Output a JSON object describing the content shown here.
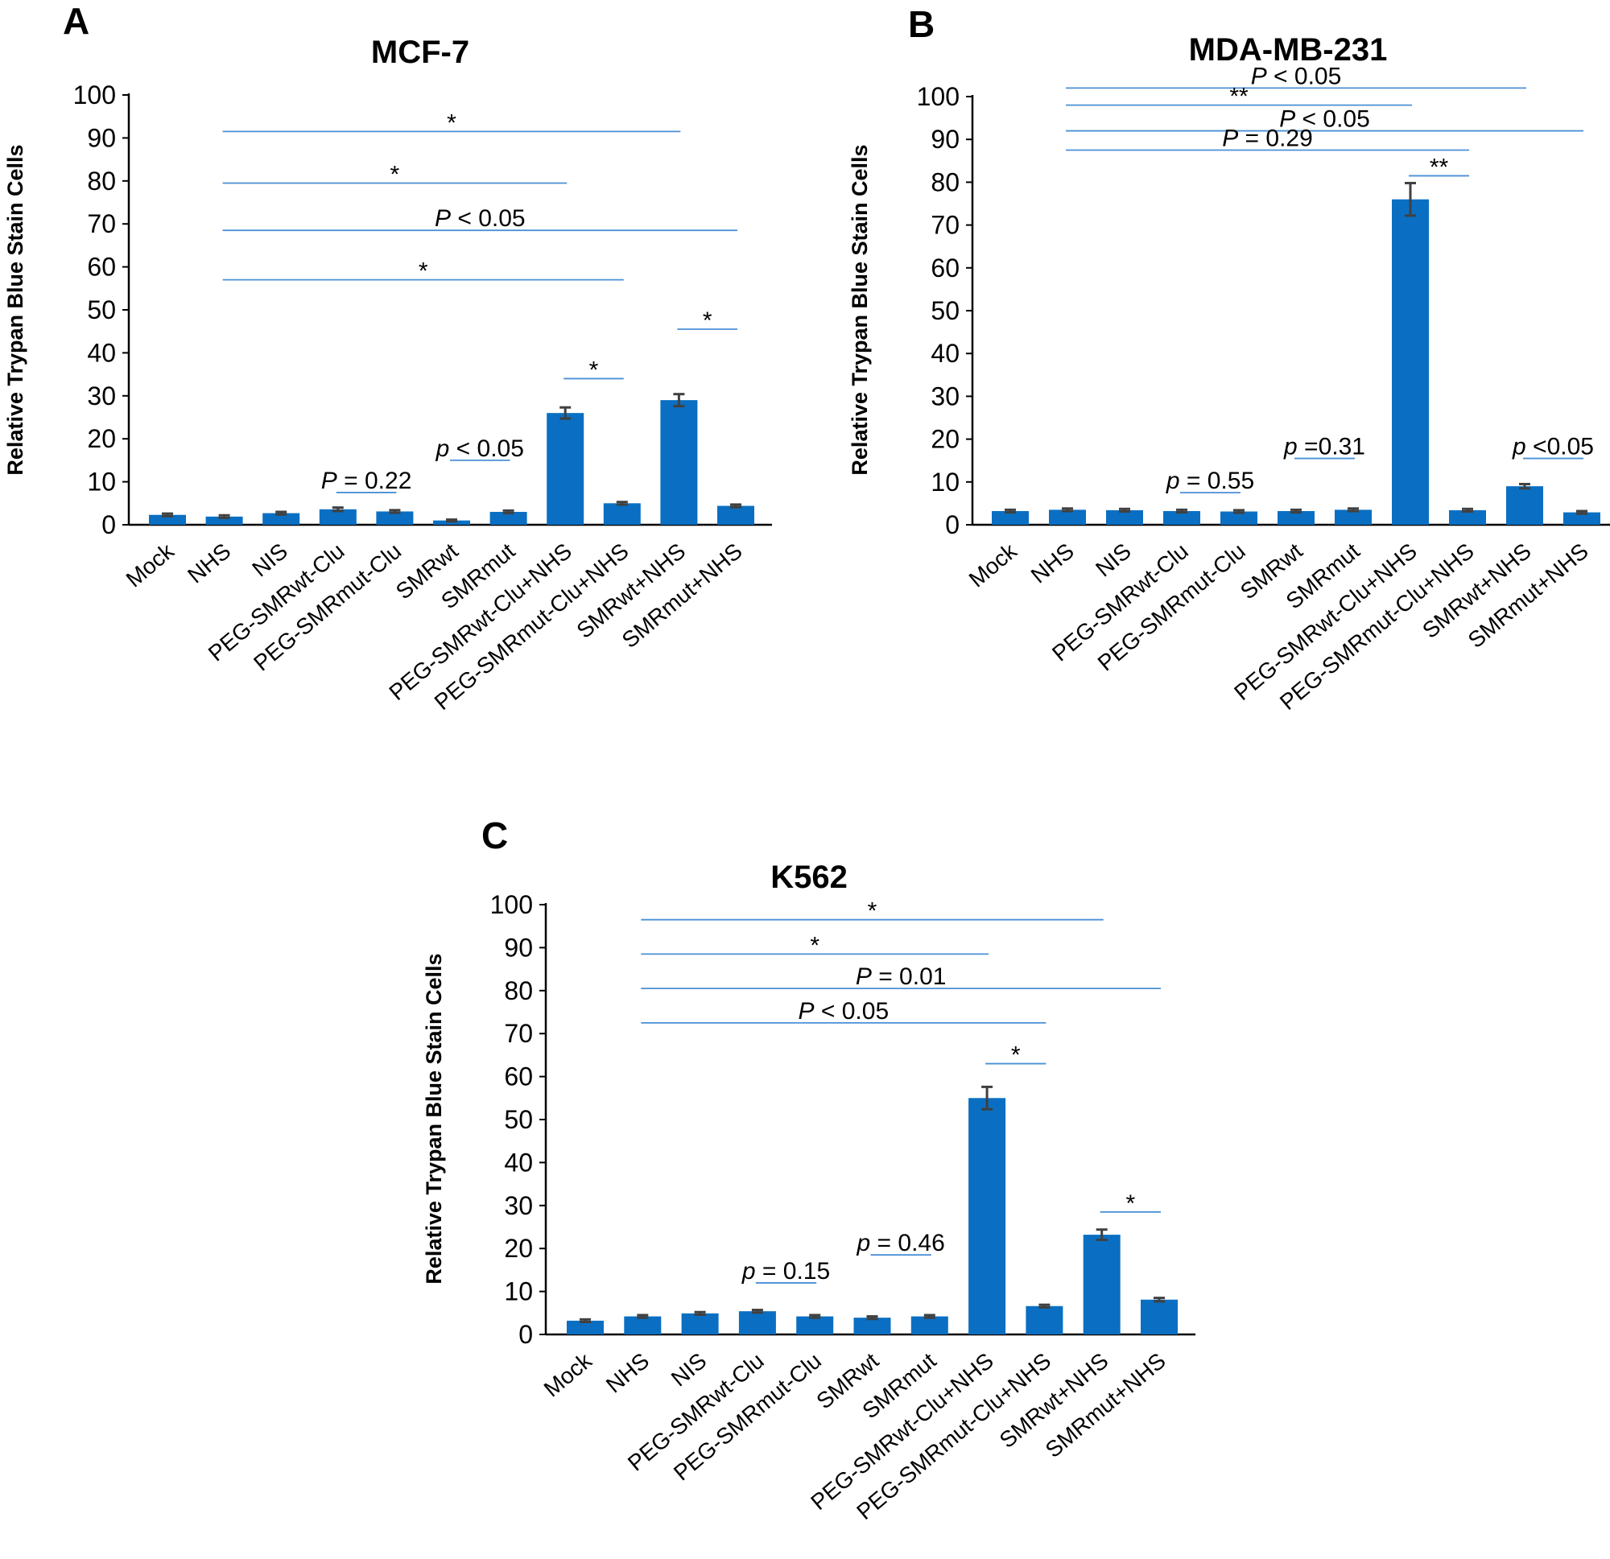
{
  "figure": {
    "bar_color": "#0a6fc2",
    "bracket_color": "#4a8fd6",
    "error_bar_color": "#404040"
  },
  "chart_data": [
    {
      "type": "bar",
      "panel_label": "A",
      "title": "MCF-7",
      "ylabel": "Relative Trypan Blue Stain Cells",
      "xlabel": "",
      "ylim": [
        0,
        100
      ],
      "yticks": [
        0,
        10,
        20,
        30,
        40,
        50,
        60,
        70,
        80,
        90,
        100
      ],
      "grid": false,
      "categories": [
        "Mock",
        "NHS",
        "NIS",
        "PEG-SMRwt-Clu",
        "PEG-SMRmut-Clu",
        "SMRwt",
        "SMRmut",
        "PEG-SMRwt-Clu+NHS",
        "PEG-SMRmut-Clu+NHS",
        "SMRwt+NHS",
        "SMRmut+NHS"
      ],
      "values": [
        2.3,
        1.9,
        2.7,
        3.6,
        3.1,
        1.0,
        3.0,
        26.0,
        5.0,
        29.0,
        4.4
      ],
      "errors": [
        0.3,
        0.3,
        0.3,
        0.4,
        0.3,
        0.2,
        0.3,
        1.3,
        0.3,
        1.4,
        0.3
      ],
      "annotations": [
        {
          "from": 1,
          "to": 9,
          "y": 91.5,
          "label": "*"
        },
        {
          "from": 1,
          "to": 7,
          "y": 79.5,
          "label": "*"
        },
        {
          "from": 1,
          "to": 10,
          "y": 68.5,
          "label": "P < 0.05"
        },
        {
          "from": 1,
          "to": 8,
          "y": 57,
          "label": "*"
        },
        {
          "from": 9,
          "to": 10,
          "y": 45.5,
          "label": "*"
        },
        {
          "from": 7,
          "to": 8,
          "y": 34,
          "label": "*"
        },
        {
          "from": 5,
          "to": 6,
          "y": 15,
          "label": "p < 0.05"
        },
        {
          "from": 3,
          "to": 4,
          "y": 7.5,
          "label": "P = 0.22"
        }
      ]
    },
    {
      "type": "bar",
      "panel_label": "B",
      "title": "MDA-MB-231",
      "ylabel": "Relative Trypan Blue Stain Cells",
      "xlabel": "",
      "ylim": [
        0,
        100
      ],
      "yticks": [
        0,
        10,
        20,
        30,
        40,
        50,
        60,
        70,
        80,
        90,
        100
      ],
      "grid": false,
      "categories": [
        "Mock",
        "NHS",
        "NIS",
        "PEG-SMRwt-Clu",
        "PEG-SMRmut-Clu",
        "SMRwt",
        "SMRmut",
        "PEG-SMRwt-Clu+NHS",
        "PEG-SMRmut-Clu+NHS",
        "SMRwt+NHS",
        "SMRmut+NHS"
      ],
      "values": [
        3.2,
        3.5,
        3.4,
        3.2,
        3.1,
        3.2,
        3.5,
        76.0,
        3.4,
        9.0,
        2.9
      ],
      "errors": [
        0.3,
        0.3,
        0.3,
        0.3,
        0.3,
        0.3,
        0.3,
        3.8,
        0.3,
        0.5,
        0.3
      ],
      "annotations": [
        {
          "from": 1,
          "to": 9,
          "y": 102,
          "label": "P < 0.05"
        },
        {
          "from": 1,
          "to": 7,
          "y": 98,
          "label": "**"
        },
        {
          "from": 1,
          "to": 10,
          "y": 92,
          "label": "P < 0.05"
        },
        {
          "from": 1,
          "to": 8,
          "y": 87.5,
          "label": "P = 0.29"
        },
        {
          "from": 7,
          "to": 8,
          "y": 81.5,
          "label": "**"
        },
        {
          "from": 5,
          "to": 6,
          "y": 15.5,
          "label": "p =0.31"
        },
        {
          "from": 9,
          "to": 10,
          "y": 15.5,
          "label": "p <0.05"
        },
        {
          "from": 3,
          "to": 4,
          "y": 7.5,
          "label": "p = 0.55"
        }
      ]
    },
    {
      "type": "bar",
      "panel_label": "C",
      "title": "K562",
      "ylabel": "Relative Trypan Blue Stain Cells",
      "xlabel": "",
      "ylim": [
        0,
        100
      ],
      "yticks": [
        0,
        10,
        20,
        30,
        40,
        50,
        60,
        70,
        80,
        90,
        100
      ],
      "grid": false,
      "categories": [
        "Mock",
        "NHS",
        "NIS",
        "PEG-SMRwt-Clu",
        "PEG-SMRmut-Clu",
        "SMRwt",
        "SMRmut",
        "PEG-SMRwt-Clu+NHS",
        "PEG-SMRmut-Clu+NHS",
        "SMRwt+NHS",
        "SMRmut+NHS"
      ],
      "values": [
        3.2,
        4.2,
        4.9,
        5.4,
        4.2,
        3.9,
        4.2,
        55.0,
        6.6,
        23.2,
        8.1
      ],
      "errors": [
        0.3,
        0.3,
        0.3,
        0.3,
        0.3,
        0.3,
        0.3,
        2.6,
        0.3,
        1.2,
        0.4
      ],
      "annotations": [
        {
          "from": 1,
          "to": 9,
          "y": 96.5,
          "label": "*"
        },
        {
          "from": 1,
          "to": 7,
          "y": 88.5,
          "label": "*"
        },
        {
          "from": 1,
          "to": 10,
          "y": 80.5,
          "label": "P = 0.01"
        },
        {
          "from": 1,
          "to": 8,
          "y": 72.5,
          "label": "P < 0.05"
        },
        {
          "from": 7,
          "to": 8,
          "y": 63,
          "label": "*"
        },
        {
          "from": 9,
          "to": 10,
          "y": 28.5,
          "label": "*"
        },
        {
          "from": 5,
          "to": 6,
          "y": 18.5,
          "label": "p = 0.46"
        },
        {
          "from": 3,
          "to": 4,
          "y": 12,
          "label": "p = 0.15"
        }
      ]
    }
  ]
}
